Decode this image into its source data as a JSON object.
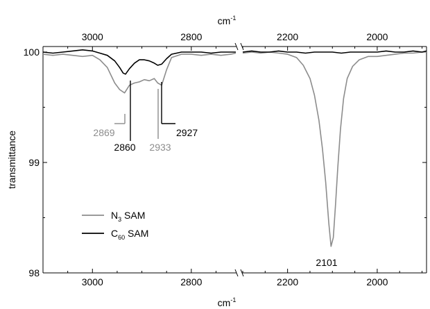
{
  "chart_data": {
    "type": "line",
    "title": "",
    "xlabel": {
      "base": "cm",
      "sup": "-1"
    },
    "ylabel": "transmittance",
    "ylim": [
      98,
      100.05
    ],
    "yticks": [
      "98",
      "99",
      "100"
    ],
    "x_reversed": true,
    "broken_x_axis": true,
    "panels": [
      {
        "xlim": [
          3100,
          2710
        ],
        "ticks": [
          3000,
          2800
        ],
        "tick_labels": [
          "3000",
          "2800"
        ]
      },
      {
        "xlim": [
          2300,
          1890
        ],
        "ticks": [
          2200,
          2000
        ],
        "tick_labels": [
          "2200",
          "2000"
        ]
      }
    ],
    "series": [
      {
        "name": "N3 SAM",
        "label_main": "N",
        "label_sub": "3",
        "label_rest": " SAM",
        "color": "#8c8c8c",
        "panel1": [
          [
            3100,
            99.98
          ],
          [
            3080,
            99.97
          ],
          [
            3060,
            99.98
          ],
          [
            3040,
            99.97
          ],
          [
            3020,
            99.96
          ],
          [
            3000,
            99.97
          ],
          [
            2985,
            99.93
          ],
          [
            2970,
            99.86
          ],
          [
            2955,
            99.72
          ],
          [
            2945,
            99.66
          ],
          [
            2935,
            99.63
          ],
          [
            2925,
            99.7
          ],
          [
            2915,
            99.72
          ],
          [
            2905,
            99.73
          ],
          [
            2895,
            99.75
          ],
          [
            2885,
            99.74
          ],
          [
            2875,
            99.76
          ],
          [
            2868,
            99.72
          ],
          [
            2860,
            99.7
          ],
          [
            2850,
            99.84
          ],
          [
            2840,
            99.95
          ],
          [
            2820,
            99.98
          ],
          [
            2800,
            99.98
          ],
          [
            2780,
            99.97
          ],
          [
            2760,
            99.98
          ],
          [
            2740,
            99.97
          ],
          [
            2720,
            99.98
          ],
          [
            2710,
            99.99
          ]
        ],
        "panel2": [
          [
            2300,
            99.99
          ],
          [
            2280,
            100.0
          ],
          [
            2260,
            99.99
          ],
          [
            2240,
            100.0
          ],
          [
            2220,
            99.99
          ],
          [
            2200,
            99.98
          ],
          [
            2180,
            99.95
          ],
          [
            2165,
            99.88
          ],
          [
            2150,
            99.76
          ],
          [
            2140,
            99.61
          ],
          [
            2130,
            99.38
          ],
          [
            2122,
            99.12
          ],
          [
            2115,
            98.82
          ],
          [
            2108,
            98.45
          ],
          [
            2103,
            98.24
          ],
          [
            2098,
            98.32
          ],
          [
            2093,
            98.62
          ],
          [
            2088,
            98.95
          ],
          [
            2082,
            99.3
          ],
          [
            2075,
            99.58
          ],
          [
            2067,
            99.76
          ],
          [
            2055,
            99.87
          ],
          [
            2040,
            99.93
          ],
          [
            2020,
            99.96
          ],
          [
            2000,
            99.96
          ],
          [
            1980,
            99.97
          ],
          [
            1960,
            99.98
          ],
          [
            1940,
            99.99
          ],
          [
            1920,
            99.99
          ],
          [
            1900,
            100.0
          ],
          [
            1890,
            100.0
          ]
        ]
      },
      {
        "name": "C60 SAM",
        "label_main": "C",
        "label_sub": "60",
        "label_rest": " SAM",
        "color": "#000000",
        "panel1": [
          [
            3100,
            100.0
          ],
          [
            3080,
            99.99
          ],
          [
            3060,
            100.0
          ],
          [
            3040,
            100.01
          ],
          [
            3020,
            100.02
          ],
          [
            3000,
            100.01
          ],
          [
            2985,
            99.99
          ],
          [
            2970,
            99.97
          ],
          [
            2955,
            99.92
          ],
          [
            2945,
            99.86
          ],
          [
            2938,
            99.81
          ],
          [
            2933,
            99.8
          ],
          [
            2925,
            99.85
          ],
          [
            2915,
            99.9
          ],
          [
            2905,
            99.93
          ],
          [
            2895,
            99.93
          ],
          [
            2885,
            99.92
          ],
          [
            2875,
            99.9
          ],
          [
            2868,
            99.88
          ],
          [
            2860,
            99.89
          ],
          [
            2850,
            99.94
          ],
          [
            2840,
            99.98
          ],
          [
            2820,
            100.0
          ],
          [
            2800,
            100.0
          ],
          [
            2780,
            100.0
          ],
          [
            2760,
            99.99
          ],
          [
            2740,
            100.0
          ],
          [
            2720,
            100.0
          ],
          [
            2710,
            100.0
          ]
        ],
        "panel2": [
          [
            2300,
            100.0
          ],
          [
            2280,
            100.01
          ],
          [
            2260,
            100.0
          ],
          [
            2240,
            100.0
          ],
          [
            2220,
            100.01
          ],
          [
            2200,
            100.0
          ],
          [
            2180,
            100.0
          ],
          [
            2160,
            99.99
          ],
          [
            2140,
            100.0
          ],
          [
            2120,
            100.0
          ],
          [
            2100,
            100.0
          ],
          [
            2080,
            99.99
          ],
          [
            2060,
            100.0
          ],
          [
            2040,
            100.0
          ],
          [
            2020,
            100.0
          ],
          [
            2000,
            100.0
          ],
          [
            1980,
            100.01
          ],
          [
            1960,
            100.0
          ],
          [
            1940,
            100.0
          ],
          [
            1920,
            100.01
          ],
          [
            1900,
            100.0
          ],
          [
            1890,
            100.01
          ]
        ]
      }
    ],
    "annotations": [
      {
        "text": "2869",
        "color": "#8c8c8c",
        "panel": 1,
        "x": 2935
      },
      {
        "text": "2860",
        "color": "#000000",
        "panel": 1,
        "x": 2925
      },
      {
        "text": "2933",
        "color": "#8c8c8c",
        "panel": 1,
        "x": 2868
      },
      {
        "text": "2927",
        "color": "#000000",
        "panel": 1,
        "x": 2860
      },
      {
        "text": "2101",
        "color": "#000000",
        "panel": 2,
        "x": 2103
      }
    ],
    "legend": {
      "placement": "bottom-left"
    }
  }
}
